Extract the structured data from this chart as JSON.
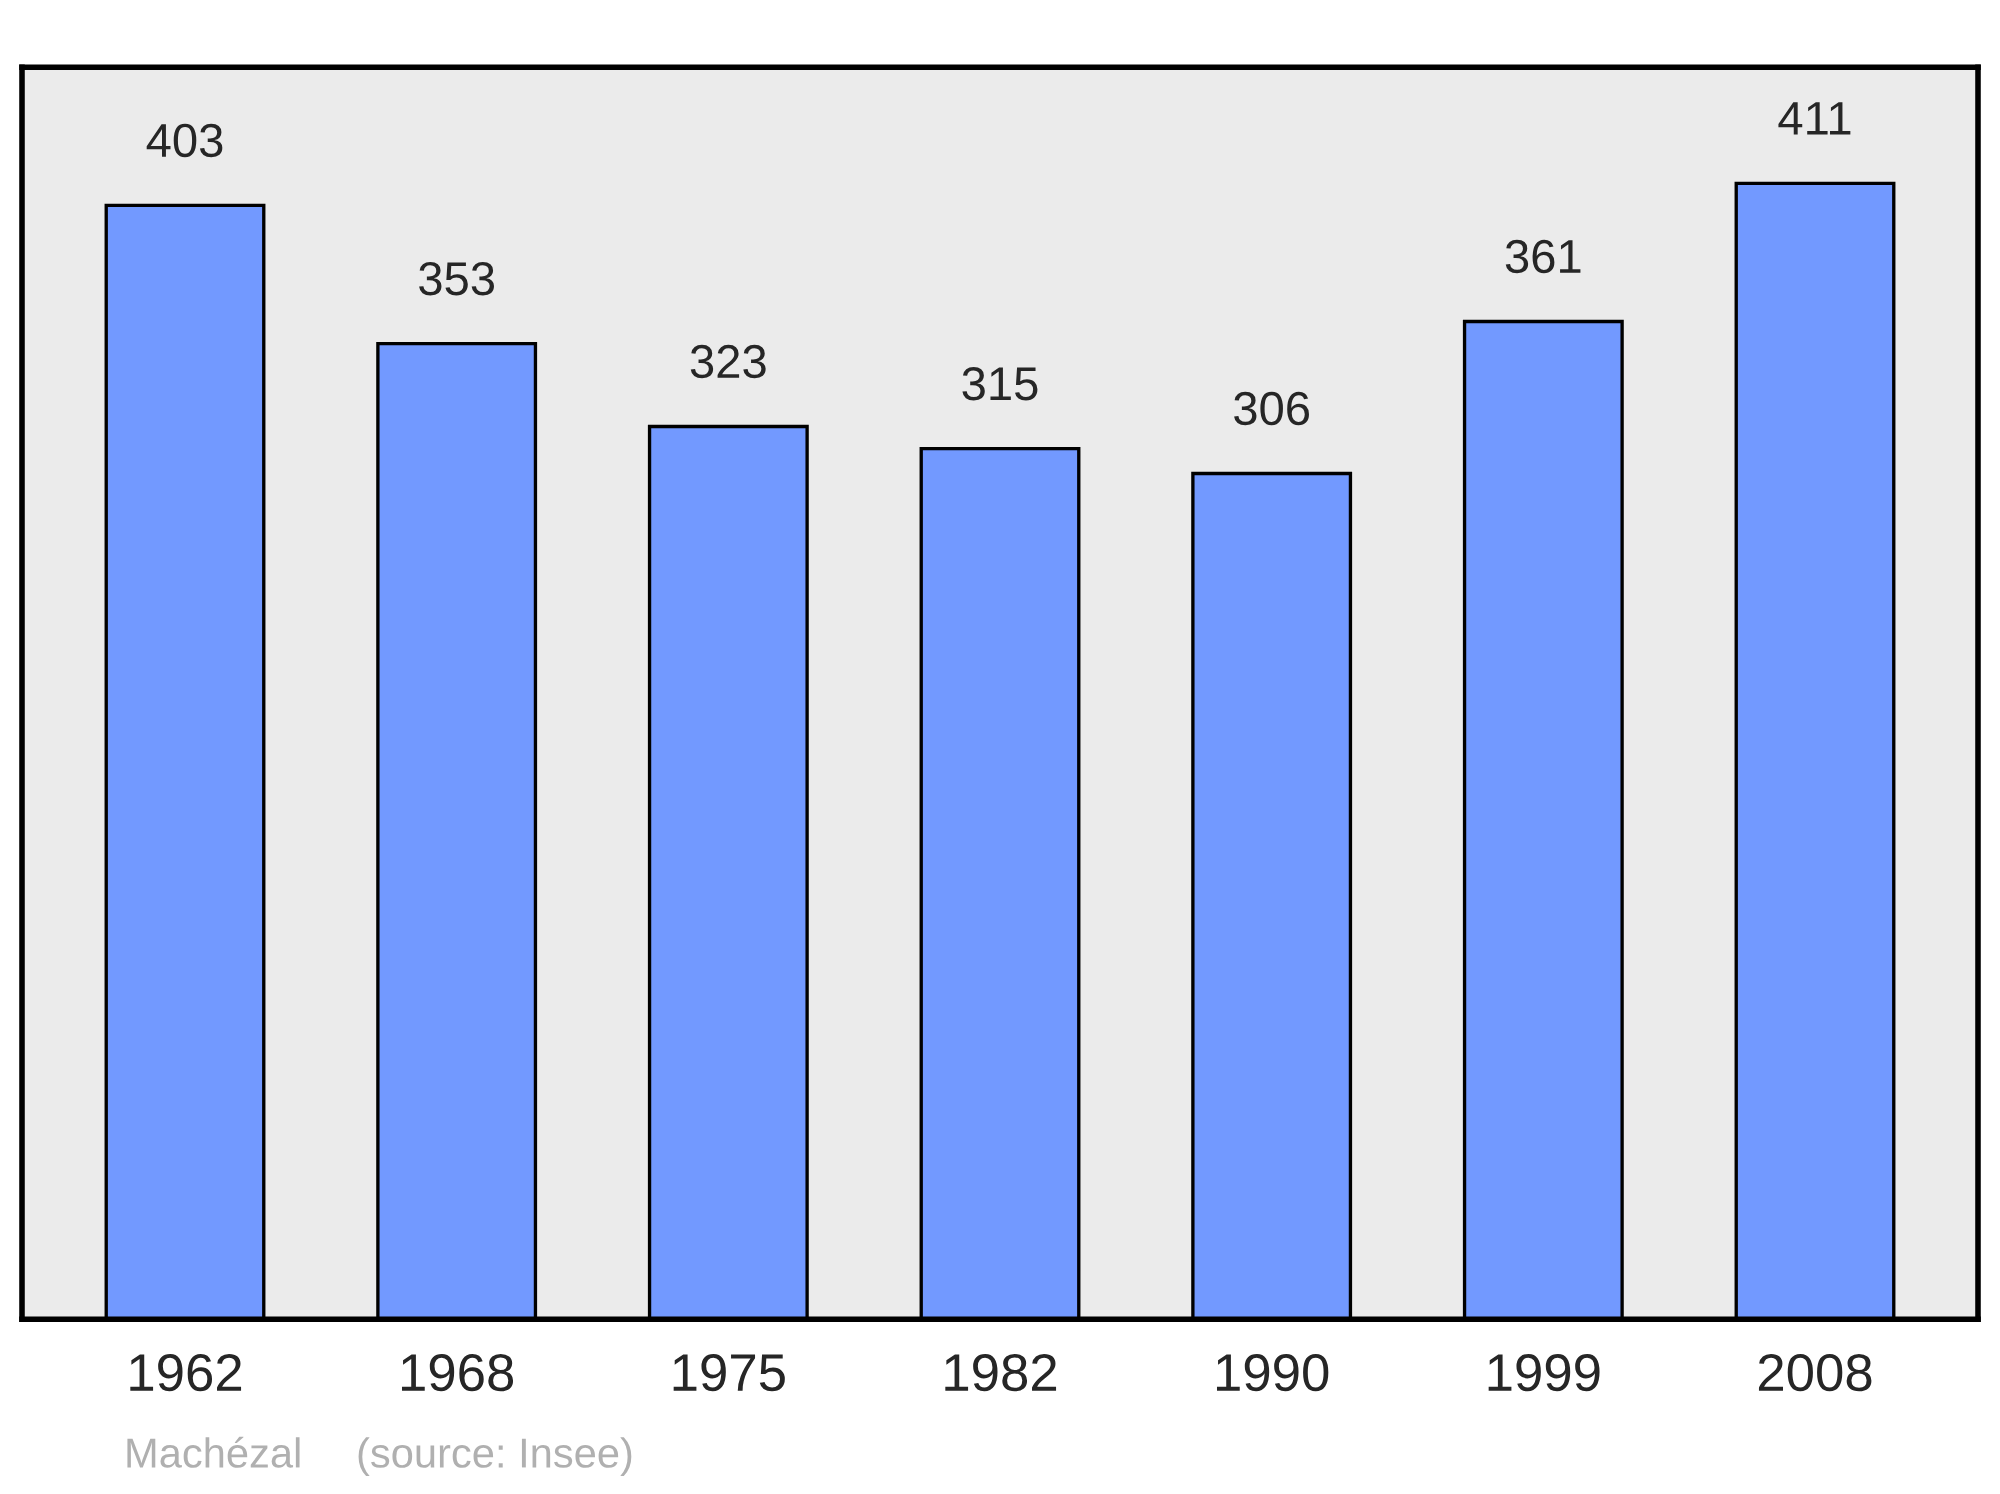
{
  "chart_data": {
    "type": "bar",
    "categories": [
      "1962",
      "1968",
      "1975",
      "1982",
      "1990",
      "1999",
      "2008"
    ],
    "values": [
      403,
      353,
      323,
      315,
      306,
      361,
      411
    ],
    "color": "#7299ff",
    "data_labels": true,
    "ylim": [
      0,
      453
    ],
    "tick_labels": "x",
    "grid": false,
    "annotations": [
      "Machézal",
      "(source: Insee)"
    ]
  }
}
